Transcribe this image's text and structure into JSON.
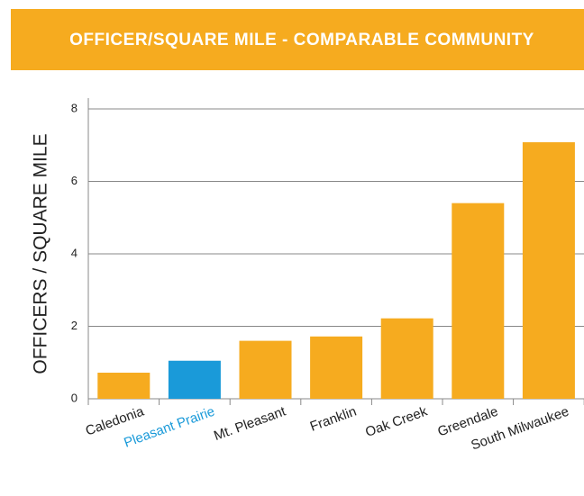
{
  "chart_data": {
    "type": "bar",
    "title": "OFFICER/SQUARE MILE - COMPARABLE COMMUNITY",
    "y_label": "OFFICERS / SQUARE MILE",
    "categories": [
      "Caledonia",
      "Pleasant Prairie",
      "Mt. Pleasant",
      "Franklin",
      "Oak Creek",
      "Greendale",
      "South Milwaukee"
    ],
    "values": [
      0.72,
      1.05,
      1.6,
      1.72,
      2.22,
      5.4,
      7.08
    ],
    "colors": [
      "#f6ab1f",
      "#1a9ad9",
      "#f6ab1f",
      "#f6ab1f",
      "#f6ab1f",
      "#f6ab1f",
      "#f6ab1f"
    ],
    "label_colors": [
      "#222222",
      "#1a9ad9",
      "#222222",
      "#222222",
      "#222222",
      "#222222",
      "#222222"
    ],
    "banner_color": "#f6ab1f",
    "ylim": [
      0,
      8
    ],
    "yticks": [
      0,
      2,
      4,
      6,
      8
    ],
    "grid": true
  }
}
